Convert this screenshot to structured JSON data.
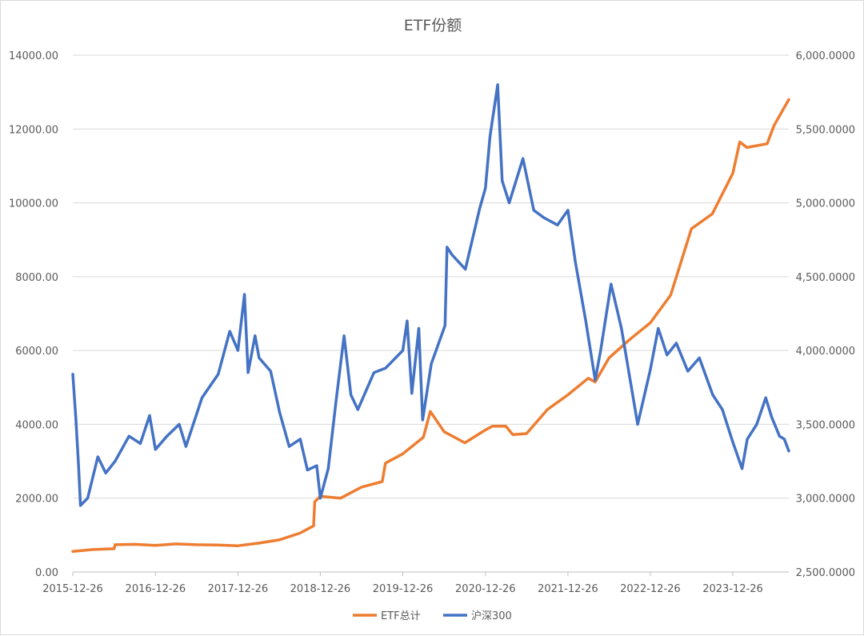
{
  "chart_data": {
    "type": "line",
    "title": "ETF份额",
    "x_ticks": [
      "2015-12-26",
      "2016-12-26",
      "2017-12-26",
      "2018-12-26",
      "2019-12-26",
      "2020-12-26",
      "2021-12-26",
      "2022-12-26",
      "2023-12-26"
    ],
    "x_range": [
      "2015-12-26",
      "2024-08-30"
    ],
    "y_left": {
      "ticks": [
        "0.00",
        "2000.00",
        "4000.00",
        "6000.00",
        "8000.00",
        "10000.00",
        "12000.00",
        "14000.00"
      ],
      "range": [
        0,
        14000
      ]
    },
    "y_right": {
      "ticks": [
        "2,500.0000",
        "3,000.0000",
        "3,500.0000",
        "4,000.0000",
        "4,500.0000",
        "5,000.0000",
        "5,500.0000",
        "6,000.0000"
      ],
      "range": [
        2500,
        6000
      ]
    },
    "grid": true,
    "legend_position": "bottom",
    "series": [
      {
        "name": "ETF总计",
        "axis": "left",
        "color": "#ED7D31",
        "points": [
          [
            "2015-12-26",
            560
          ],
          [
            "2016-03-26",
            610
          ],
          [
            "2016-06-26",
            630
          ],
          [
            "2016-06-30",
            740
          ],
          [
            "2016-09-26",
            750
          ],
          [
            "2016-12-26",
            720
          ],
          [
            "2017-03-26",
            760
          ],
          [
            "2017-06-26",
            740
          ],
          [
            "2017-09-26",
            730
          ],
          [
            "2017-12-26",
            710
          ],
          [
            "2018-03-26",
            780
          ],
          [
            "2018-06-26",
            870
          ],
          [
            "2018-09-26",
            1050
          ],
          [
            "2018-11-26",
            1250
          ],
          [
            "2018-12-01",
            1900
          ],
          [
            "2018-12-26",
            2050
          ],
          [
            "2019-03-26",
            2000
          ],
          [
            "2019-06-26",
            2300
          ],
          [
            "2019-09-26",
            2450
          ],
          [
            "2019-10-10",
            2950
          ],
          [
            "2019-12-26",
            3200
          ],
          [
            "2020-03-26",
            3650
          ],
          [
            "2020-04-26",
            4350
          ],
          [
            "2020-06-26",
            3800
          ],
          [
            "2020-09-26",
            3500
          ],
          [
            "2020-12-26",
            3850
          ],
          [
            "2021-01-26",
            3950
          ],
          [
            "2021-03-26",
            3950
          ],
          [
            "2021-04-26",
            3720
          ],
          [
            "2021-06-26",
            3750
          ],
          [
            "2021-09-26",
            4400
          ],
          [
            "2021-12-26",
            4800
          ],
          [
            "2022-03-26",
            5250
          ],
          [
            "2022-04-26",
            5150
          ],
          [
            "2022-06-26",
            5800
          ],
          [
            "2022-09-26",
            6300
          ],
          [
            "2022-12-26",
            6750
          ],
          [
            "2023-03-26",
            7500
          ],
          [
            "2023-06-26",
            9300
          ],
          [
            "2023-09-26",
            9700
          ],
          [
            "2023-12-26",
            10800
          ],
          [
            "2024-01-26",
            11650
          ],
          [
            "2024-02-26",
            11500
          ],
          [
            "2024-05-26",
            11600
          ],
          [
            "2024-06-26",
            12100
          ],
          [
            "2024-08-30",
            12800
          ]
        ]
      },
      {
        "name": "沪深300",
        "axis": "right",
        "color": "#4472C4",
        "points": [
          [
            "2015-12-26",
            3840
          ],
          [
            "2016-01-08",
            3550
          ],
          [
            "2016-01-20",
            3230
          ],
          [
            "2016-01-29",
            2950
          ],
          [
            "2016-03-01",
            3000
          ],
          [
            "2016-04-15",
            3280
          ],
          [
            "2016-05-20",
            3170
          ],
          [
            "2016-06-30",
            3250
          ],
          [
            "2016-08-31",
            3420
          ],
          [
            "2016-10-20",
            3370
          ],
          [
            "2016-11-30",
            3560
          ],
          [
            "2016-12-26",
            3330
          ],
          [
            "2017-02-15",
            3420
          ],
          [
            "2017-04-10",
            3500
          ],
          [
            "2017-05-10",
            3350
          ],
          [
            "2017-07-20",
            3680
          ],
          [
            "2017-09-30",
            3840
          ],
          [
            "2017-11-20",
            4130
          ],
          [
            "2017-12-26",
            4000
          ],
          [
            "2018-01-24",
            4380
          ],
          [
            "2018-02-09",
            3850
          ],
          [
            "2018-03-12",
            4100
          ],
          [
            "2018-03-30",
            3950
          ],
          [
            "2018-05-20",
            3860
          ],
          [
            "2018-06-29",
            3580
          ],
          [
            "2018-08-10",
            3350
          ],
          [
            "2018-09-28",
            3400
          ],
          [
            "2018-10-30",
            3190
          ],
          [
            "2018-12-10",
            3220
          ],
          [
            "2018-12-26",
            3000
          ],
          [
            "2019-01-30",
            3200
          ],
          [
            "2019-03-05",
            3650
          ],
          [
            "2019-04-10",
            4100
          ],
          [
            "2019-05-10",
            3700
          ],
          [
            "2019-06-10",
            3600
          ],
          [
            "2019-08-20",
            3850
          ],
          [
            "2019-10-10",
            3880
          ],
          [
            "2019-12-26",
            4000
          ],
          [
            "2020-01-14",
            4200
          ],
          [
            "2020-02-04",
            3710
          ],
          [
            "2020-03-06",
            4150
          ],
          [
            "2020-03-23",
            3530
          ],
          [
            "2020-04-30",
            3910
          ],
          [
            "2020-06-30",
            4170
          ],
          [
            "2020-07-09",
            4700
          ],
          [
            "2020-07-30",
            4650
          ],
          [
            "2020-09-28",
            4550
          ],
          [
            "2020-11-30",
            4960
          ],
          [
            "2020-12-26",
            5100
          ],
          [
            "2021-01-15",
            5450
          ],
          [
            "2021-02-18",
            5800
          ],
          [
            "2021-03-10",
            5150
          ],
          [
            "2021-04-10",
            5000
          ],
          [
            "2021-06-10",
            5300
          ],
          [
            "2021-07-28",
            4950
          ],
          [
            "2021-09-10",
            4900
          ],
          [
            "2021-11-10",
            4850
          ],
          [
            "2021-12-26",
            4950
          ],
          [
            "2022-01-28",
            4600
          ],
          [
            "2022-03-15",
            4200
          ],
          [
            "2022-04-26",
            3800
          ],
          [
            "2022-05-20",
            4000
          ],
          [
            "2022-07-05",
            4450
          ],
          [
            "2022-08-20",
            4150
          ],
          [
            "2022-10-31",
            3500
          ],
          [
            "2022-12-26",
            3870
          ],
          [
            "2023-01-30",
            4150
          ],
          [
            "2023-03-10",
            3970
          ],
          [
            "2023-04-20",
            4050
          ],
          [
            "2023-06-10",
            3860
          ],
          [
            "2023-07-31",
            3950
          ],
          [
            "2023-09-28",
            3700
          ],
          [
            "2023-11-10",
            3600
          ],
          [
            "2023-12-26",
            3380
          ],
          [
            "2024-02-05",
            3200
          ],
          [
            "2024-02-28",
            3400
          ],
          [
            "2024-04-10",
            3500
          ],
          [
            "2024-05-20",
            3680
          ],
          [
            "2024-06-15",
            3550
          ],
          [
            "2024-07-20",
            3420
          ],
          [
            "2024-08-10",
            3400
          ],
          [
            "2024-08-30",
            3320
          ]
        ]
      }
    ]
  }
}
